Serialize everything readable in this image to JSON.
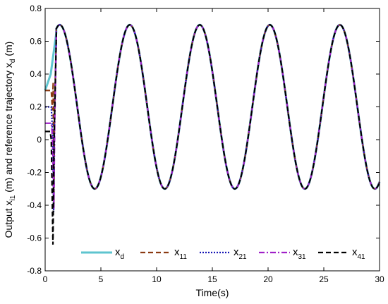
{
  "chart_data": {
    "type": "line",
    "xlabel": "Time(s)",
    "ylabel": {
      "base": "Output x",
      "sub1": "i1",
      "mid": " (m) and reference trajectory x",
      "sub2": "d",
      "unit": " (m)"
    },
    "xlim": [
      0,
      30
    ],
    "ylim": [
      -0.8,
      0.8
    ],
    "xticks": [
      0,
      5,
      10,
      15,
      20,
      25,
      30
    ],
    "yticks": [
      -0.8,
      -0.6,
      -0.4,
      -0.2,
      0,
      0.2,
      0.4,
      0.6,
      0.8
    ],
    "ytick_labels": [
      "-0.8",
      "-0.6",
      "-0.4",
      "-0.2",
      "0",
      "0.2",
      "0.4",
      "0.6",
      "0.8"
    ],
    "grid": false,
    "legend_position": "bottom-center",
    "reference_wave": {
      "offset": 0.2,
      "amplitude": 0.5,
      "period": 6.283,
      "phase_peak_time": 1.31
    },
    "series": [
      {
        "name": "x",
        "sub": "d",
        "color": "#5ec4cf",
        "dash": "none",
        "initial": [
          [
            0.0,
            0.3
          ],
          [
            0.5,
            0.4
          ],
          [
            1.0,
            0.65
          ]
        ]
      },
      {
        "name": "x",
        "sub": "11",
        "color": "#8b3a12",
        "dash": "7,4",
        "initial": [
          [
            0.0,
            0.3
          ],
          [
            0.55,
            0.3
          ],
          [
            0.65,
            0.18
          ],
          [
            0.72,
            0.35
          ],
          [
            0.78,
            -0.4
          ],
          [
            0.85,
            0.2
          ],
          [
            1.0,
            0.62
          ]
        ]
      },
      {
        "name": "x",
        "sub": "21",
        "color": "#1414b4",
        "dash": "2,2",
        "initial": [
          [
            0.0,
            0.2
          ],
          [
            0.55,
            0.2
          ],
          [
            0.62,
            0.1
          ],
          [
            0.7,
            0.0
          ],
          [
            0.76,
            -0.44
          ],
          [
            0.85,
            0.15
          ],
          [
            1.0,
            0.62
          ]
        ]
      },
      {
        "name": "x",
        "sub": "31",
        "color": "#a020c8",
        "dash": "8,3,2,3",
        "initial": [
          [
            0.0,
            0.1
          ],
          [
            0.55,
            0.1
          ],
          [
            0.62,
            0.05
          ],
          [
            0.7,
            -0.1
          ],
          [
            0.78,
            -0.42
          ],
          [
            0.86,
            0.1
          ],
          [
            1.0,
            0.62
          ]
        ]
      },
      {
        "name": "x",
        "sub": "41",
        "color": "#000000",
        "dash": "7,4",
        "initial": [
          [
            0.0,
            0.05
          ],
          [
            0.45,
            0.05
          ],
          [
            0.55,
            0.0
          ],
          [
            0.62,
            -0.3
          ],
          [
            0.7,
            -0.64
          ],
          [
            0.8,
            0.0
          ],
          [
            1.0,
            0.62
          ]
        ]
      }
    ]
  }
}
